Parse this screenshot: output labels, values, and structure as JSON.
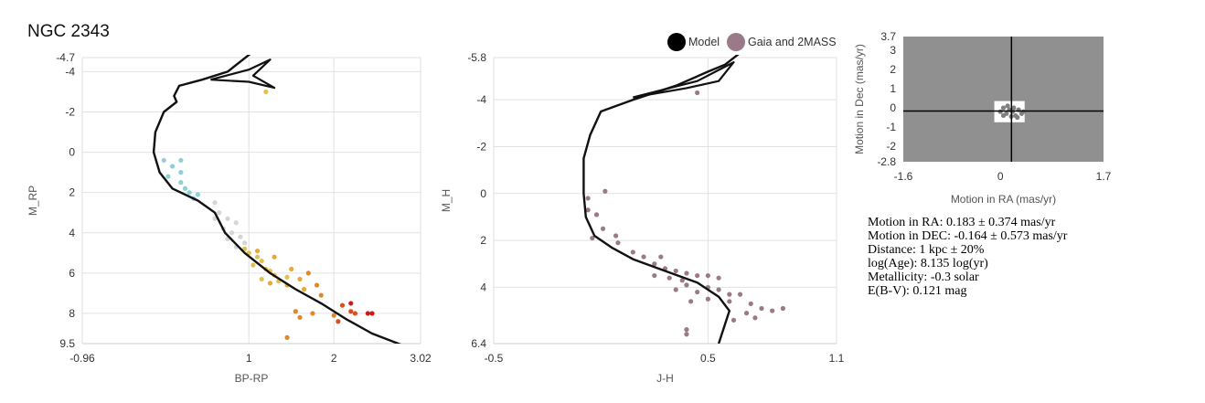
{
  "title": "NGC 2343",
  "legend": [
    {
      "label": "Model",
      "color": "#000000"
    },
    {
      "label": "Gaia and 2MASS",
      "color": "#9a7a88"
    }
  ],
  "stats": [
    "Motion in RA: 0.183 ± 0.374 mas/yr",
    "Motion in DEC: -0.164 ± 0.573 mas/yr",
    "Distance: 1 kpc ± 20%",
    "log(Age): 8.135 log(yr)",
    "Metallicity: -0.3 solar",
    "E(B-V): 0.121 mag"
  ],
  "chart_data": [
    {
      "id": "cmd-gaia",
      "type": "scatter",
      "xlabel": "BP-RP",
      "ylabel": "M_RP",
      "xlim": [
        -0.96,
        3.02
      ],
      "ylim": [
        9.5,
        -4.7
      ],
      "xticks": [
        -0.96,
        1,
        2,
        3.02
      ],
      "yticks": [
        -4.7,
        -4,
        -2,
        0,
        2,
        4,
        6,
        8,
        9.5
      ],
      "grid": true,
      "model": [
        [
          1.25,
          -6.0
        ],
        [
          1.05,
          -5.0
        ],
        [
          0.75,
          -4.0
        ],
        [
          0.45,
          -3.6
        ],
        [
          0.18,
          -3.3
        ],
        [
          0.12,
          -2.8
        ],
        [
          0.15,
          -2.5
        ],
        [
          0.0,
          -2.0
        ],
        [
          -0.1,
          -1.0
        ],
        [
          -0.12,
          0.0
        ],
        [
          -0.05,
          1.0
        ],
        [
          0.1,
          1.8
        ],
        [
          0.4,
          2.4
        ],
        [
          0.6,
          3.0
        ],
        [
          0.72,
          4.0
        ],
        [
          0.95,
          5.0
        ],
        [
          1.25,
          6.0
        ],
        [
          1.55,
          6.8
        ],
        [
          1.85,
          7.5
        ],
        [
          2.15,
          8.3
        ],
        [
          2.45,
          9.0
        ],
        [
          2.82,
          9.6
        ]
      ],
      "model_loop": [
        [
          0.55,
          -3.6
        ],
        [
          1.0,
          -3.5
        ],
        [
          1.3,
          -3.2
        ],
        [
          1.05,
          -3.8
        ],
        [
          1.25,
          -4.6
        ],
        [
          1.0,
          -4.1
        ],
        [
          0.55,
          -3.6
        ]
      ],
      "series": [
        {
          "color": "#8fd0d8",
          "points": [
            [
              0.0,
              0.4
            ],
            [
              0.2,
              0.4
            ],
            [
              0.1,
              0.7
            ],
            [
              0.2,
              1.0
            ],
            [
              0.05,
              1.2
            ],
            [
              0.2,
              1.5
            ],
            [
              0.25,
              1.8
            ],
            [
              0.3,
              2.0
            ],
            [
              0.4,
              2.1
            ],
            [
              0.35,
              2.3
            ]
          ]
        },
        {
          "color": "#d5d5d5",
          "points": [
            [
              0.6,
              2.5
            ],
            [
              0.65,
              3.0
            ],
            [
              0.75,
              3.3
            ],
            [
              0.6,
              3.3
            ],
            [
              0.85,
              3.5
            ],
            [
              0.7,
              3.8
            ],
            [
              0.8,
              4.0
            ],
            [
              0.9,
              4.2
            ],
            [
              0.75,
              4.3
            ],
            [
              0.95,
              4.5
            ],
            [
              0.85,
              4.7
            ]
          ]
        },
        {
          "color": "#e0c050",
          "points": [
            [
              1.2,
              -3.0
            ],
            [
              0.95,
              4.8
            ],
            [
              1.0,
              5.0
            ],
            [
              1.1,
              5.2
            ],
            [
              1.15,
              5.4
            ],
            [
              1.05,
              5.6
            ],
            [
              1.2,
              5.8
            ],
            [
              1.25,
              5.9
            ],
            [
              1.3,
              6.1
            ],
            [
              1.15,
              6.3
            ],
            [
              1.35,
              6.4
            ],
            [
              1.45,
              6.2
            ]
          ]
        },
        {
          "color": "#e8a838",
          "points": [
            [
              1.1,
              4.9
            ],
            [
              1.3,
              5.2
            ],
            [
              1.5,
              5.8
            ],
            [
              1.6,
              6.3
            ],
            [
              1.45,
              6.6
            ],
            [
              1.65,
              6.8
            ],
            [
              1.25,
              6.5
            ]
          ]
        },
        {
          "color": "#e08828",
          "points": [
            [
              1.7,
              6.0
            ],
            [
              1.8,
              6.6
            ],
            [
              1.85,
              7.1
            ],
            [
              1.55,
              7.9
            ],
            [
              1.75,
              8.0
            ],
            [
              2.0,
              8.1
            ],
            [
              1.45,
              9.2
            ],
            [
              1.6,
              8.2
            ]
          ]
        },
        {
          "color": "#d85020",
          "points": [
            [
              2.1,
              7.6
            ],
            [
              2.2,
              7.9
            ],
            [
              2.05,
              8.4
            ],
            [
              2.25,
              8.0
            ]
          ]
        },
        {
          "color": "#d01818",
          "points": [
            [
              2.2,
              7.5
            ],
            [
              2.4,
              8.0
            ],
            [
              2.45,
              8.0
            ]
          ]
        }
      ]
    },
    {
      "id": "cmd-2mass",
      "type": "scatter",
      "xlabel": "J-H",
      "ylabel": "M_H",
      "xlim": [
        -0.5,
        1.1
      ],
      "ylim": [
        6.4,
        -5.8
      ],
      "xticks": [
        -0.5,
        0.5,
        1.1
      ],
      "yticks": [
        -5.8,
        -4,
        -2,
        0,
        2,
        4,
        6.4
      ],
      "grid": true,
      "model": [
        [
          0.65,
          -6.0
        ],
        [
          0.58,
          -5.5
        ],
        [
          0.5,
          -5.2
        ],
        [
          0.35,
          -4.6
        ],
        [
          0.15,
          -4.0
        ],
        [
          0.0,
          -3.5
        ],
        [
          -0.05,
          -2.5
        ],
        [
          -0.08,
          -1.5
        ],
        [
          -0.08,
          0.0
        ],
        [
          -0.07,
          1.0
        ],
        [
          -0.03,
          1.8
        ],
        [
          0.05,
          2.3
        ],
        [
          0.15,
          2.8
        ],
        [
          0.3,
          3.3
        ],
        [
          0.45,
          3.8
        ],
        [
          0.55,
          4.4
        ],
        [
          0.6,
          5.0
        ],
        [
          0.55,
          6.4
        ]
      ],
      "model_loop": [
        [
          0.15,
          -4.1
        ],
        [
          0.45,
          -4.8
        ],
        [
          0.62,
          -5.6
        ],
        [
          0.55,
          -4.8
        ],
        [
          0.4,
          -4.5
        ],
        [
          0.15,
          -4.1
        ]
      ],
      "series": [
        {
          "color": "#9a7a88",
          "points": [
            [
              0.45,
              -4.3
            ],
            [
              -0.06,
              0.2
            ],
            [
              0.02,
              -0.1
            ],
            [
              -0.06,
              0.7
            ],
            [
              -0.02,
              0.9
            ],
            [
              0.01,
              1.5
            ],
            [
              -0.04,
              1.9
            ],
            [
              0.07,
              1.8
            ],
            [
              0.08,
              2.1
            ],
            [
              0.15,
              2.5
            ],
            [
              0.2,
              2.7
            ],
            [
              0.28,
              2.7
            ],
            [
              0.25,
              3.0
            ],
            [
              0.3,
              3.2
            ],
            [
              0.35,
              3.3
            ],
            [
              0.4,
              3.4
            ],
            [
              0.25,
              3.5
            ],
            [
              0.32,
              3.6
            ],
            [
              0.38,
              3.7
            ],
            [
              0.45,
              3.5
            ],
            [
              0.5,
              3.5
            ],
            [
              0.55,
              3.6
            ],
            [
              0.4,
              3.9
            ],
            [
              0.5,
              4.0
            ],
            [
              0.35,
              4.1
            ],
            [
              0.45,
              4.2
            ],
            [
              0.55,
              4.1
            ],
            [
              0.6,
              4.3
            ],
            [
              0.65,
              4.3
            ],
            [
              0.42,
              4.6
            ],
            [
              0.5,
              4.5
            ],
            [
              0.6,
              4.6
            ],
            [
              0.7,
              4.7
            ],
            [
              0.75,
              4.9
            ],
            [
              0.8,
              5.0
            ],
            [
              0.68,
              5.1
            ],
            [
              0.72,
              5.3
            ],
            [
              0.62,
              5.4
            ],
            [
              0.85,
              4.9
            ],
            [
              0.4,
              5.8
            ],
            [
              0.4,
              6.0
            ]
          ]
        }
      ]
    },
    {
      "id": "proper-motion",
      "type": "scatter",
      "xlabel": "Motion in RA (mas/yr)",
      "ylabel": "Motion in Dec (mas/yr)",
      "xlim": [
        -1.6,
        1.7
      ],
      "ylim": [
        -2.8,
        3.7
      ],
      "xticks": [
        -1.6,
        0,
        1.7
      ],
      "yticks": [
        -2.8,
        -2,
        -1,
        0,
        1,
        2,
        3,
        3.7
      ],
      "background": "#909090",
      "box": {
        "x": [
          -0.1,
          0.4
        ],
        "y": [
          -0.75,
          0.35
        ]
      },
      "cross": {
        "x": 0.183,
        "y": -0.164
      },
      "points": [
        [
          0.0,
          -0.2
        ],
        [
          0.05,
          0.0
        ],
        [
          0.1,
          -0.3
        ],
        [
          0.15,
          -0.1
        ],
        [
          0.2,
          -0.2
        ],
        [
          0.25,
          -0.4
        ],
        [
          0.3,
          -0.1
        ],
        [
          0.35,
          -0.3
        ],
        [
          0.05,
          -0.4
        ],
        [
          0.12,
          0.1
        ],
        [
          0.22,
          0.0
        ],
        [
          0.28,
          -0.5
        ],
        [
          0.18,
          -0.45
        ],
        [
          0.38,
          -0.2
        ]
      ]
    }
  ]
}
